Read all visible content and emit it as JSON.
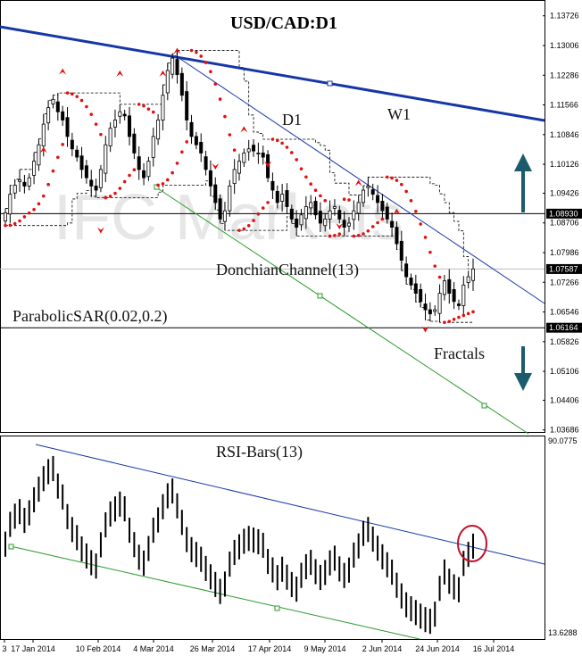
{
  "chart_data": [
    {
      "type": "candlestick",
      "title": "USD/CAD:D1",
      "watermark": "IFC Markets",
      "ylim": [
        1.0368,
        1.1372
      ],
      "y_ticks": [
        "1.13726",
        "1.13006",
        "1.12286",
        "1.11566",
        "1.10846",
        "1.10126",
        "1.09426",
        "1.08706",
        "1.07986",
        "1.07266",
        "1.06546",
        "1.05826",
        "1.05106",
        "1.04406",
        "1.03686"
      ],
      "x_ticks": [
        "3",
        "17 Jan 2014",
        "10 Feb 2014",
        "4 Mar 2014",
        "26 Mar 2014",
        "17 Apr 2014",
        "9 May 2014",
        "2 Jun 2014",
        "24 Jun 2014",
        "16 Jul 2014"
      ],
      "current_price": "1.07587",
      "resistance": "1.08930",
      "support": "1.06164",
      "annotations": [
        "D1",
        "W1",
        "DonchianChannel(13)",
        "ParabolicSAR(0.02,0.2)",
        "Fractals"
      ],
      "close": [
        1.0895,
        1.094,
        1.0962,
        1.0975,
        1.096,
        1.098,
        1.102,
        1.106,
        1.111,
        1.115,
        1.117,
        1.114,
        1.112,
        1.108,
        1.105,
        1.103,
        1.1,
        1.098,
        1.096,
        1.095,
        1.1,
        1.106,
        1.11,
        1.112,
        1.114,
        1.113,
        1.108,
        1.104,
        1.1,
        1.098,
        1.102,
        1.108,
        1.112,
        1.118,
        1.124,
        1.127,
        1.123,
        1.118,
        1.112,
        1.108,
        1.106,
        1.104,
        1.1,
        1.096,
        1.092,
        1.088,
        1.09,
        1.096,
        1.1,
        1.102,
        1.104,
        1.105,
        1.1045,
        1.104,
        1.103,
        1.098,
        1.095,
        1.092,
        1.094,
        1.091,
        1.088,
        1.086,
        1.089,
        1.091,
        1.092,
        1.089,
        1.087,
        1.088,
        1.09,
        1.091,
        1.088,
        1.086,
        1.087,
        1.09,
        1.092,
        1.095,
        1.096,
        1.094,
        1.092,
        1.09,
        1.088,
        1.086,
        1.082,
        1.078,
        1.074,
        1.072,
        1.07,
        1.068,
        1.066,
        1.065,
        1.066,
        1.07,
        1.073,
        1.07,
        1.068,
        1.067,
        1.072,
        1.074,
        1.0759
      ],
      "fractals_up": [
        1.104,
        1.123,
        1.1225,
        1.1225,
        1.128,
        1.109,
        1.096,
        1.089
      ],
      "fractals_down": [
        1.086,
        1.1015,
        1.102,
        1.087,
        1.062
      ]
    },
    {
      "type": "bar",
      "title": "RSI-Bars(13)",
      "ylim": [
        13.6288,
        90.0775
      ],
      "y_ticks": [
        "90.0775",
        "13.6288"
      ]
    }
  ]
}
